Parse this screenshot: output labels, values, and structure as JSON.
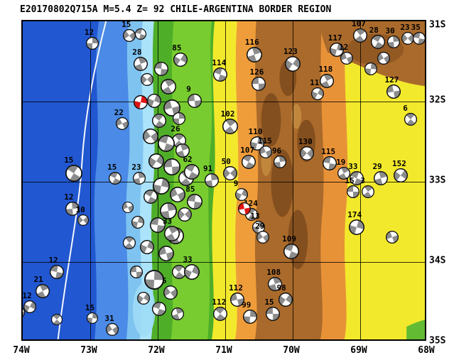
{
  "title": "E20170802Q715A M=5.4 Z= 92 CHILE-ARGENTINA BORDER REGION",
  "colors": {
    "ocean_deep": "#2157d0",
    "ocean_mid": "#4b8ae6",
    "ocean_shallow": "#7fc3f1",
    "coast_cyan": "#abe3fa",
    "lowland_green": "#4fae28",
    "valley_green": "#7ccf30",
    "elev_yellow": "#f3e92c",
    "elev_orange": "#ef9d3a",
    "andes_brown": "#a96a2b",
    "andes_dark": "#7e4a1c",
    "mech_shade": "#8c8c8c",
    "highlight": "#e01414",
    "trench_white": "#ffffff"
  },
  "map": {
    "lon_labels": [
      "74W",
      "73W",
      "72W",
      "71W",
      "70W",
      "69W",
      "68W"
    ],
    "lat_labels": [
      "31S",
      "32S",
      "33S",
      "34S",
      "35S"
    ],
    "lon_range": [
      -74,
      -68
    ],
    "lat_range": [
      -31,
      -35
    ],
    "events": [
      {
        "lon": -72.97,
        "lat": -31.27,
        "d": "12",
        "r": 9
      },
      {
        "lon": -72.42,
        "lat": -31.18,
        "d": "15",
        "r": 9
      },
      {
        "lon": -72.25,
        "lat": -31.16,
        "d": "",
        "r": 8
      },
      {
        "lon": -72.25,
        "lat": -31.53,
        "d": "28",
        "r": 10
      },
      {
        "lon": -71.66,
        "lat": -31.48,
        "d": "85",
        "r": 10
      },
      {
        "lon": -71.45,
        "lat": -31.99,
        "d": "9",
        "r": 10
      },
      {
        "lon": -71.68,
        "lat": -32.49,
        "d": "26",
        "r": 10
      },
      {
        "lon": -72.25,
        "lat": -32.01,
        "d": "",
        "r": 10,
        "red": true
      },
      {
        "lon": -72.53,
        "lat": -32.27,
        "d": "22",
        "r": 9
      },
      {
        "lon": -72.63,
        "lat": -32.96,
        "d": "15",
        "r": 9
      },
      {
        "lon": -72.27,
        "lat": -32.96,
        "d": "23",
        "r": 9
      },
      {
        "lon": -72.16,
        "lat": -31.73,
        "d": "",
        "r": 9
      },
      {
        "lon": -71.95,
        "lat": -31.59,
        "d": "",
        "r": 10
      },
      {
        "lon": -71.84,
        "lat": -31.81,
        "d": "",
        "r": 11
      },
      {
        "lon": -72.05,
        "lat": -31.99,
        "d": "",
        "r": 10
      },
      {
        "lon": -71.79,
        "lat": -32.08,
        "d": "",
        "r": 12
      },
      {
        "lon": -71.98,
        "lat": -32.24,
        "d": "",
        "r": 10
      },
      {
        "lon": -71.68,
        "lat": -32.21,
        "d": "",
        "r": 9
      },
      {
        "lon": -72.11,
        "lat": -32.43,
        "d": "",
        "r": 11
      },
      {
        "lon": -71.87,
        "lat": -32.52,
        "d": "",
        "r": 12
      },
      {
        "lon": -71.63,
        "lat": -32.61,
        "d": "",
        "r": 10
      },
      {
        "lon": -72.02,
        "lat": -32.74,
        "d": "",
        "r": 11
      },
      {
        "lon": -71.79,
        "lat": -32.81,
        "d": "",
        "r": 12
      },
      {
        "lon": -71.58,
        "lat": -32.96,
        "d": "",
        "r": 11
      },
      {
        "lon": -71.95,
        "lat": -33.05,
        "d": "",
        "r": 12
      },
      {
        "lon": -71.71,
        "lat": -33.16,
        "d": "",
        "r": 11
      },
      {
        "lon": -72.11,
        "lat": -33.19,
        "d": "",
        "r": 10
      },
      {
        "lon": -71.84,
        "lat": -33.36,
        "d": "",
        "r": 12
      },
      {
        "lon": -71.6,
        "lat": -33.41,
        "d": "",
        "r": 10
      },
      {
        "lon": -72.0,
        "lat": -33.54,
        "d": "",
        "r": 11
      },
      {
        "lon": -71.74,
        "lat": -33.67,
        "d": "",
        "r": 12
      },
      {
        "lon": -72.16,
        "lat": -33.81,
        "d": "",
        "r": 10
      },
      {
        "lon": -71.87,
        "lat": -33.89,
        "d": "",
        "r": 11
      },
      {
        "lon": -71.68,
        "lat": -34.12,
        "d": "",
        "r": 10
      },
      {
        "lon": -72.05,
        "lat": -34.22,
        "d": "",
        "r": 14
      },
      {
        "lon": -71.81,
        "lat": -34.38,
        "d": "5",
        "r": 10
      },
      {
        "lon": -71.98,
        "lat": -34.58,
        "d": "",
        "r": 10
      },
      {
        "lon": -71.71,
        "lat": -34.65,
        "d": "",
        "r": 9
      },
      {
        "lon": -72.21,
        "lat": -34.45,
        "d": "",
        "r": 9
      },
      {
        "lon": -72.32,
        "lat": -34.12,
        "d": "",
        "r": 9
      },
      {
        "lon": -72.42,
        "lat": -33.76,
        "d": "",
        "r": 9
      },
      {
        "lon": -72.29,
        "lat": -33.5,
        "d": "",
        "r": 9
      },
      {
        "lon": -72.44,
        "lat": -33.32,
        "d": "",
        "r": 8
      },
      {
        "lon": -71.49,
        "lat": -32.88,
        "d": "62",
        "r": 11
      },
      {
        "lon": -71.2,
        "lat": -32.98,
        "d": "91",
        "r": 10
      },
      {
        "lon": -70.93,
        "lat": -32.89,
        "d": "50",
        "r": 10
      },
      {
        "lon": -71.45,
        "lat": -33.25,
        "d": "85",
        "r": 11
      },
      {
        "lon": -71.79,
        "lat": -33.65,
        "d": "33",
        "r": 11
      },
      {
        "lon": -71.49,
        "lat": -34.12,
        "d": "33",
        "r": 11
      },
      {
        "lon": -70.82,
        "lat": -34.47,
        "d": "112",
        "r": 10
      },
      {
        "lon": -71.07,
        "lat": -34.65,
        "d": "112",
        "r": 10
      },
      {
        "lon": -70.63,
        "lat": -34.68,
        "d": "99",
        "r": 10
      },
      {
        "lon": -72.67,
        "lat": -34.84,
        "d": "31",
        "r": 9
      },
      {
        "lon": -71.07,
        "lat": -31.66,
        "d": "114",
        "r": 10
      },
      {
        "lon": -70.57,
        "lat": -31.42,
        "d": "116",
        "r": 11
      },
      {
        "lon": -70.0,
        "lat": -31.53,
        "d": "123",
        "r": 11
      },
      {
        "lon": -70.51,
        "lat": -31.78,
        "d": "126",
        "r": 10
      },
      {
        "lon": -70.93,
        "lat": -32.31,
        "d": "102",
        "r": 11
      },
      {
        "lon": -70.53,
        "lat": -32.52,
        "d": "110",
        "r": 10
      },
      {
        "lon": -70.4,
        "lat": -32.63,
        "d": "115",
        "r": 9
      },
      {
        "lon": -70.65,
        "lat": -32.75,
        "d": "107",
        "r": 10
      },
      {
        "lon": -70.19,
        "lat": -32.75,
        "d": "96",
        "r": 9
      },
      {
        "lon": -69.79,
        "lat": -32.65,
        "d": "130",
        "r": 10
      },
      {
        "lon": -69.45,
        "lat": -32.77,
        "d": "115",
        "r": 10
      },
      {
        "lon": -69.24,
        "lat": -32.89,
        "d": "19",
        "r": 9
      },
      {
        "lon": -70.76,
        "lat": -33.16,
        "d": "9",
        "r": 9
      },
      {
        "lon": -70.72,
        "lat": -33.34,
        "d": "",
        "r": 9,
        "red": true
      },
      {
        "lon": -70.61,
        "lat": -33.41,
        "d": "124",
        "r": 9
      },
      {
        "lon": -70.51,
        "lat": -33.57,
        "d": "13",
        "r": 9
      },
      {
        "lon": -70.44,
        "lat": -33.69,
        "d": "29",
        "r": 9
      },
      {
        "lon": -70.02,
        "lat": -33.87,
        "d": "109",
        "r": 11
      },
      {
        "lon": -70.26,
        "lat": -34.27,
        "d": "108",
        "r": 10
      },
      {
        "lon": -70.11,
        "lat": -34.47,
        "d": "98",
        "r": 10
      },
      {
        "lon": -70.29,
        "lat": -34.65,
        "d": "15",
        "r": 10
      },
      {
        "lon": -69.0,
        "lat": -31.18,
        "d": "107",
        "r": 10
      },
      {
        "lon": -69.35,
        "lat": -31.35,
        "d": "117",
        "r": 10
      },
      {
        "lon": -69.2,
        "lat": -31.46,
        "d": "12",
        "r": 9
      },
      {
        "lon": -68.74,
        "lat": -31.26,
        "d": "28",
        "r": 10
      },
      {
        "lon": -68.51,
        "lat": -31.26,
        "d": "30",
        "r": 9
      },
      {
        "lon": -68.29,
        "lat": -31.21,
        "d": "23",
        "r": 9
      },
      {
        "lon": -68.13,
        "lat": -31.21,
        "d": "35",
        "r": 9
      },
      {
        "lon": -69.49,
        "lat": -31.74,
        "d": "118",
        "r": 10
      },
      {
        "lon": -69.63,
        "lat": -31.9,
        "d": "11",
        "r": 9
      },
      {
        "lon": -68.51,
        "lat": -31.88,
        "d": "127",
        "r": 10
      },
      {
        "lon": -68.25,
        "lat": -32.22,
        "d": "6",
        "r": 9
      },
      {
        "lon": -68.84,
        "lat": -31.59,
        "d": "",
        "r": 9
      },
      {
        "lon": -68.65,
        "lat": -31.46,
        "d": "",
        "r": 9
      },
      {
        "lon": -69.05,
        "lat": -32.96,
        "d": "33",
        "r": 10
      },
      {
        "lon": -68.69,
        "lat": -32.96,
        "d": "29",
        "r": 10
      },
      {
        "lon": -68.4,
        "lat": -32.92,
        "d": "152",
        "r": 10
      },
      {
        "lon": -69.11,
        "lat": -33.12,
        "d": "15",
        "r": 9
      },
      {
        "lon": -68.88,
        "lat": -33.12,
        "d": "3",
        "r": 9
      },
      {
        "lon": -69.05,
        "lat": -33.57,
        "d": "174",
        "r": 11
      },
      {
        "lon": -68.53,
        "lat": -33.69,
        "d": "",
        "r": 9
      },
      {
        "lon": -73.24,
        "lat": -32.89,
        "d": "15",
        "r": 12
      },
      {
        "lon": -73.26,
        "lat": -33.34,
        "d": "12",
        "r": 10
      },
      {
        "lon": -73.11,
        "lat": -33.48,
        "d": "10",
        "r": 8
      },
      {
        "lon": -73.49,
        "lat": -34.12,
        "d": "12",
        "r": 10
      },
      {
        "lon": -73.71,
        "lat": -34.36,
        "d": "21",
        "r": 10
      },
      {
        "lon": -73.89,
        "lat": -34.56,
        "d": "12",
        "r": 9
      },
      {
        "lon": -74.05,
        "lat": -34.63,
        "d": "",
        "r": 8
      },
      {
        "lon": -73.49,
        "lat": -34.72,
        "d": "",
        "r": 8
      },
      {
        "lon": -72.97,
        "lat": -34.7,
        "d": "15",
        "r": 8
      }
    ]
  }
}
